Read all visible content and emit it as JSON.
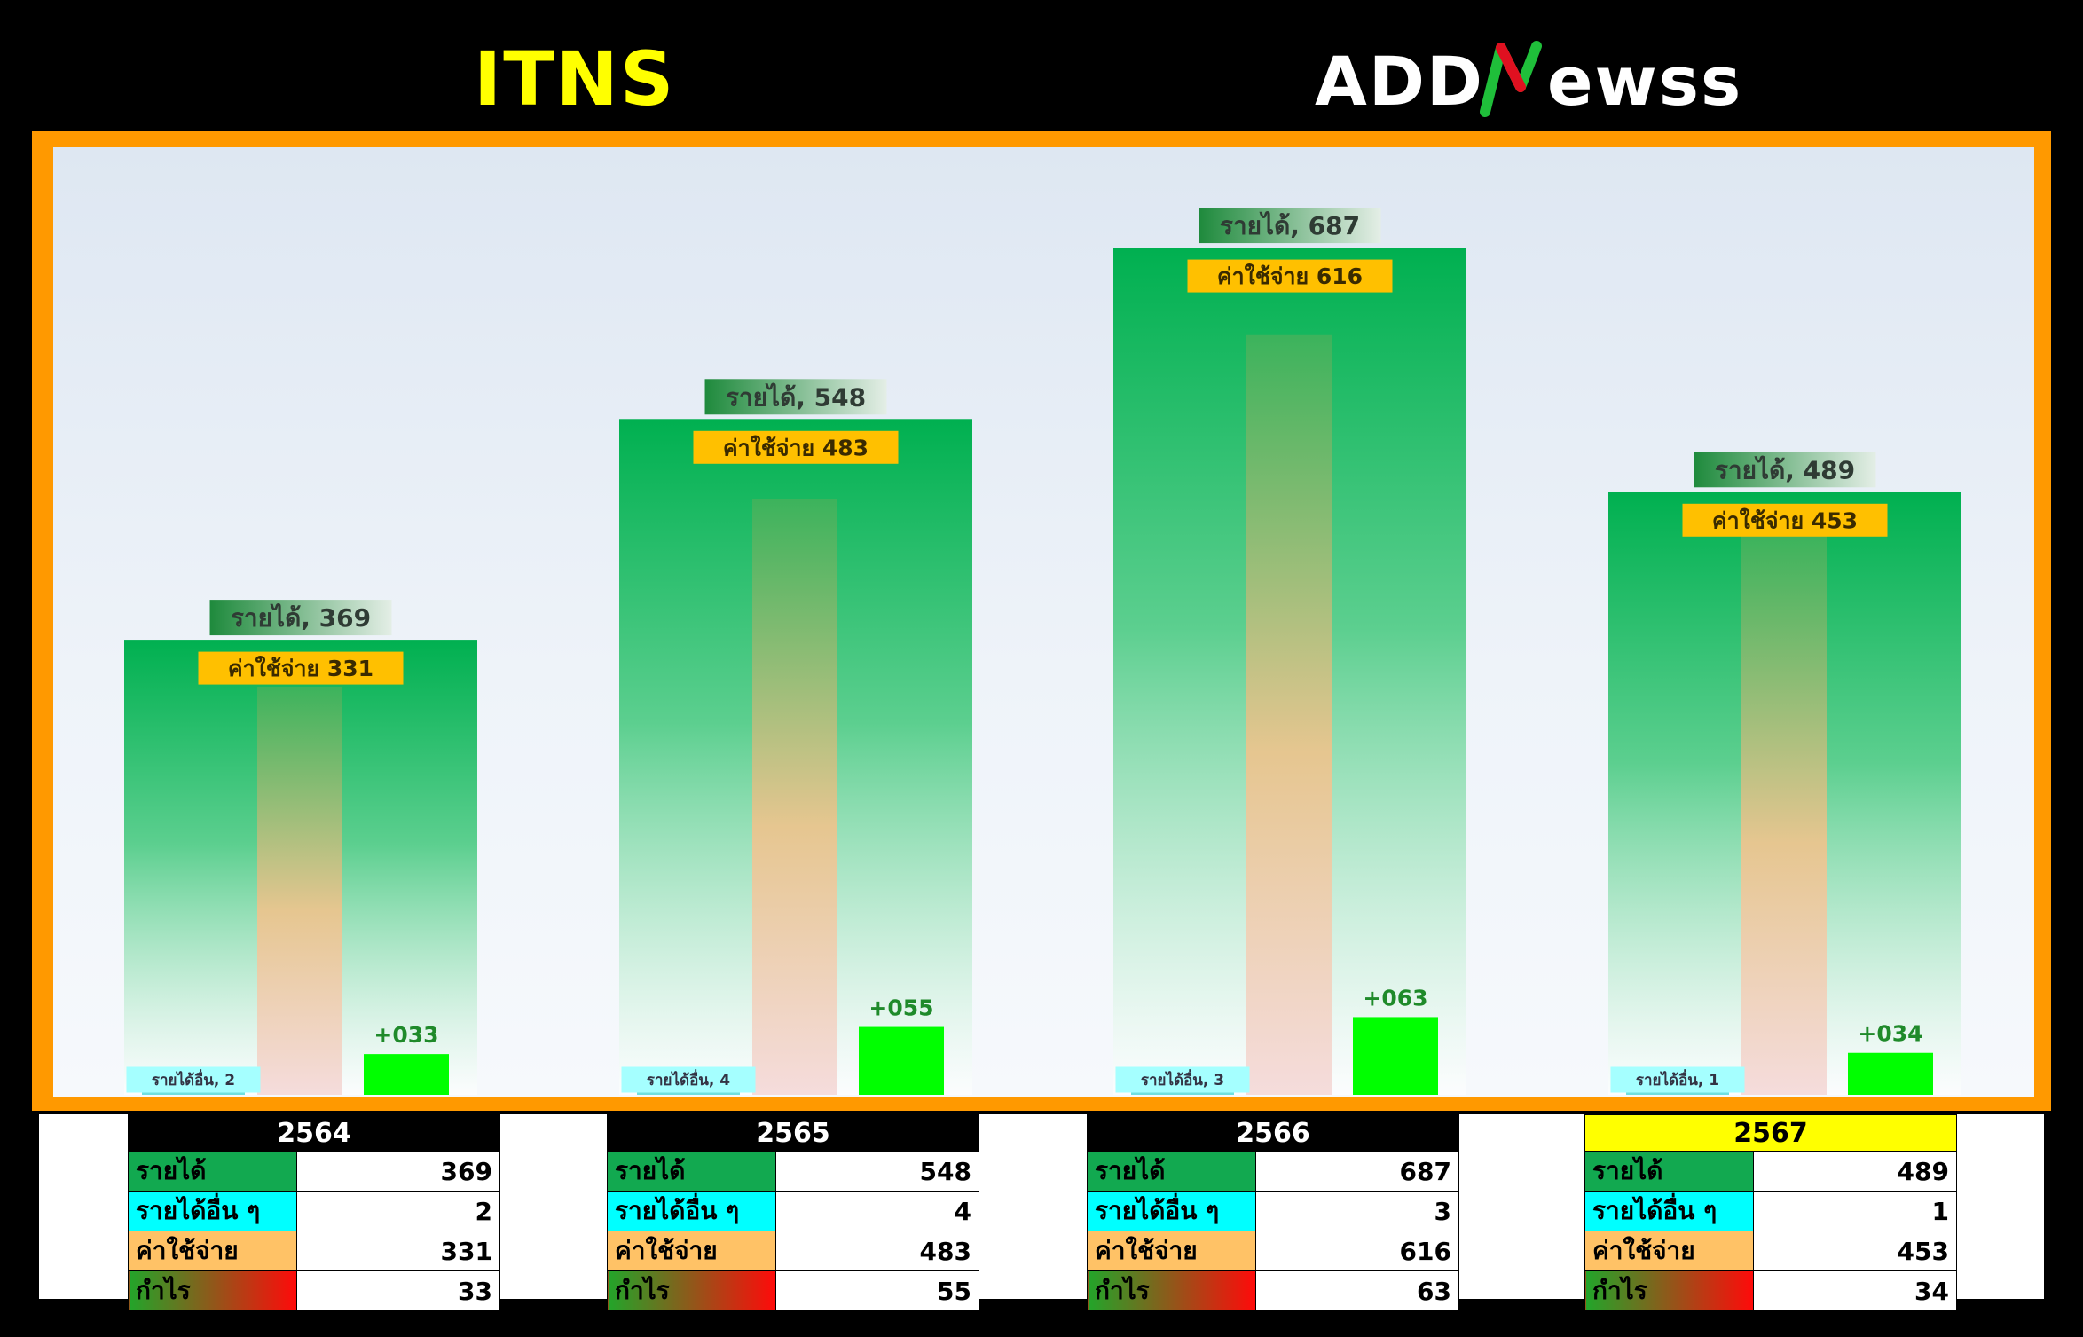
{
  "header": {
    "title": "ITNS",
    "logo_text": "ADDNewss"
  },
  "colors": {
    "frame": "#ff9900",
    "revenue": "#00b050",
    "profit": "#00ff00",
    "other_income_label": "#a5ffff",
    "expense_label": "#ffc000",
    "highlight_year": "#ffff00"
  },
  "chart_data": {
    "type": "bar",
    "categories": [
      "2564",
      "2565",
      "2566",
      "2567"
    ],
    "ylim": [
      0,
      720
    ],
    "series": [
      {
        "name": "รายได้",
        "values": [
          369,
          548,
          687,
          489
        ]
      },
      {
        "name": "รายได้อื่น",
        "values": [
          2,
          4,
          3,
          1
        ]
      },
      {
        "name": "ค่าใช้จ่าย",
        "values": [
          331,
          483,
          616,
          453
        ]
      },
      {
        "name": "กำไร",
        "values": [
          33,
          55,
          63,
          34
        ]
      }
    ],
    "data_labels": {
      "revenue": [
        "รายได้, 369",
        "รายได้, 548",
        "รายได้, 687",
        "รายได้, 489"
      ],
      "other_income": [
        "รายได้อื่น, 2",
        "รายได้อื่น, 4",
        "รายได้อื่น, 3",
        "รายได้อื่น, 1"
      ],
      "expense": [
        "ค่าใช้จ่าย 331",
        "ค่าใช้จ่าย 483",
        "ค่าใช้จ่าย 616",
        "ค่าใช้จ่าย 453"
      ],
      "profit": [
        "+033",
        "+055",
        "+063",
        "+034"
      ]
    }
  },
  "tables": [
    {
      "year": "2564",
      "highlight": false,
      "rows": [
        {
          "label": "รายได้",
          "value": "369"
        },
        {
          "label": "รายได้อื่น ๆ",
          "value": "2"
        },
        {
          "label": "ค่าใช้จ่าย",
          "value": "331"
        },
        {
          "label": "กำไร",
          "value": "33"
        }
      ]
    },
    {
      "year": "2565",
      "highlight": false,
      "rows": [
        {
          "label": "รายได้",
          "value": "548"
        },
        {
          "label": "รายได้อื่น ๆ",
          "value": "4"
        },
        {
          "label": "ค่าใช้จ่าย",
          "value": "483"
        },
        {
          "label": "กำไร",
          "value": "55"
        }
      ]
    },
    {
      "year": "2566",
      "highlight": false,
      "rows": [
        {
          "label": "รายได้",
          "value": "687"
        },
        {
          "label": "รายได้อื่น ๆ",
          "value": "3"
        },
        {
          "label": "ค่าใช้จ่าย",
          "value": "616"
        },
        {
          "label": "กำไร",
          "value": "63"
        }
      ]
    },
    {
      "year": "2567",
      "highlight": true,
      "rows": [
        {
          "label": "รายได้",
          "value": "489"
        },
        {
          "label": "รายได้อื่น ๆ",
          "value": "1"
        },
        {
          "label": "ค่าใช้จ่าย",
          "value": "453"
        },
        {
          "label": "กำไร",
          "value": "34"
        }
      ]
    }
  ]
}
